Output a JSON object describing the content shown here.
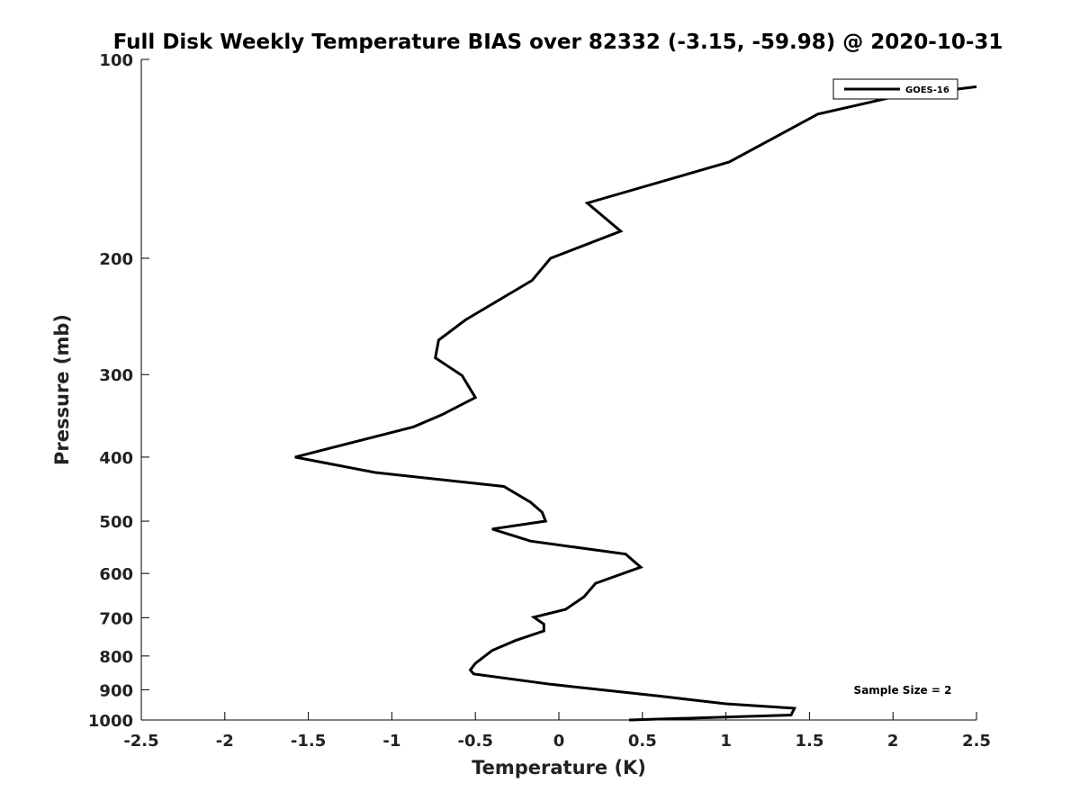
{
  "chart_data": {
    "type": "line",
    "title": "Full Disk Weekly Temperature BIAS over 82332 (-3.15, -59.98) @ 2020-10-31",
    "xlabel": "Temperature (K)",
    "ylabel": "Pressure (mb)",
    "xlim": [
      -2.5,
      2.5
    ],
    "ylim": [
      100,
      1000
    ],
    "y_scale": "log",
    "y_reversed": true,
    "grid": false,
    "x_ticks": [
      -2.5,
      -2,
      -1.5,
      -1,
      -0.5,
      0,
      0.5,
      1,
      1.5,
      2,
      2.5
    ],
    "x_tick_labels": [
      "-2.5",
      "-2",
      "-1.5",
      "-1",
      "-0.5",
      "0",
      "0.5",
      "1",
      "1.5",
      "2",
      "2.5"
    ],
    "y_ticks": [
      100,
      200,
      300,
      400,
      500,
      600,
      700,
      800,
      900,
      1000
    ],
    "y_tick_labels": [
      "100",
      "200",
      "300",
      "400",
      "500",
      "600",
      "700",
      "800",
      "900",
      "1000"
    ],
    "legend_position": "top-right",
    "annotation": "Sample Size = 2",
    "series": [
      {
        "name": "GOES-16",
        "color": "#000000",
        "points": [
          [
            2.5,
            110
          ],
          [
            2.0,
            114
          ],
          [
            1.55,
            121
          ],
          [
            1.02,
            143
          ],
          [
            0.17,
            165
          ],
          [
            0.37,
            182
          ],
          [
            -0.05,
            200
          ],
          [
            -0.16,
            216
          ],
          [
            -0.56,
            248
          ],
          [
            -0.72,
            266
          ],
          [
            -0.74,
            283
          ],
          [
            -0.58,
            301
          ],
          [
            -0.5,
            325
          ],
          [
            -0.7,
            345
          ],
          [
            -0.87,
            360
          ],
          [
            -1.58,
            400
          ],
          [
            -1.1,
            422
          ],
          [
            -0.33,
            443
          ],
          [
            -0.17,
            468
          ],
          [
            -0.1,
            485
          ],
          [
            -0.08,
            500
          ],
          [
            -0.4,
            514
          ],
          [
            -0.17,
            536
          ],
          [
            0.4,
            561
          ],
          [
            0.49,
            587
          ],
          [
            0.22,
            621
          ],
          [
            0.15,
            651
          ],
          [
            0.04,
            680
          ],
          [
            -0.15,
            699
          ],
          [
            -0.09,
            716
          ],
          [
            -0.09,
            733
          ],
          [
            -0.26,
            758
          ],
          [
            -0.4,
            785
          ],
          [
            -0.5,
            821
          ],
          [
            -0.53,
            840
          ],
          [
            -0.51,
            852
          ],
          [
            -0.05,
            883
          ],
          [
            0.6,
            920
          ],
          [
            1.0,
            945
          ],
          [
            1.41,
            960
          ],
          [
            1.39,
            983
          ],
          [
            0.42,
            1000
          ]
        ]
      }
    ]
  }
}
